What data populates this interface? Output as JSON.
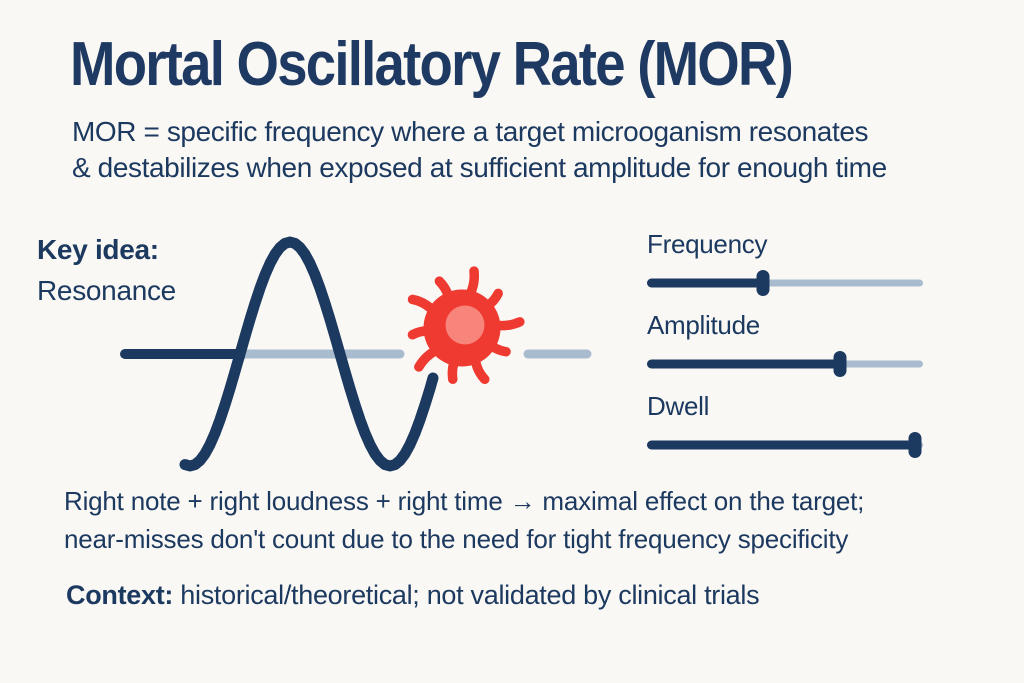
{
  "colors": {
    "background": "#faf8f4",
    "navy": "#1c3960",
    "title_navy": "#1e3a63",
    "track_light": "#a9bccf",
    "virus_red": "#ee3a30",
    "virus_core": "#f8857c"
  },
  "title": "Mortal Oscillatory Rate (MOR)",
  "definition": {
    "line1": "MOR = specific frequency where a target microoganism resonates",
    "line2": "& destabilizes when exposed at sufficient amplitude for enough time"
  },
  "key_idea": {
    "label": "Key idea:",
    "value": "Resonance"
  },
  "diagram": {
    "wave_icon": "sine-wave",
    "pathogen_icon": "microbe"
  },
  "sliders": [
    {
      "label": "Frequency",
      "value_pct": 42
    },
    {
      "label": "Amplitude",
      "value_pct": 70
    },
    {
      "label": "Dwell",
      "value_pct": 97
    }
  ],
  "summary": {
    "line1": "Right note + right loudness + right time → maximal effect on the target;",
    "line2": "near-misses don't count due to the need for tight frequency specificity"
  },
  "context": {
    "label": "Context:",
    "value": "historical/theoretical; not validated by clinical trials"
  }
}
